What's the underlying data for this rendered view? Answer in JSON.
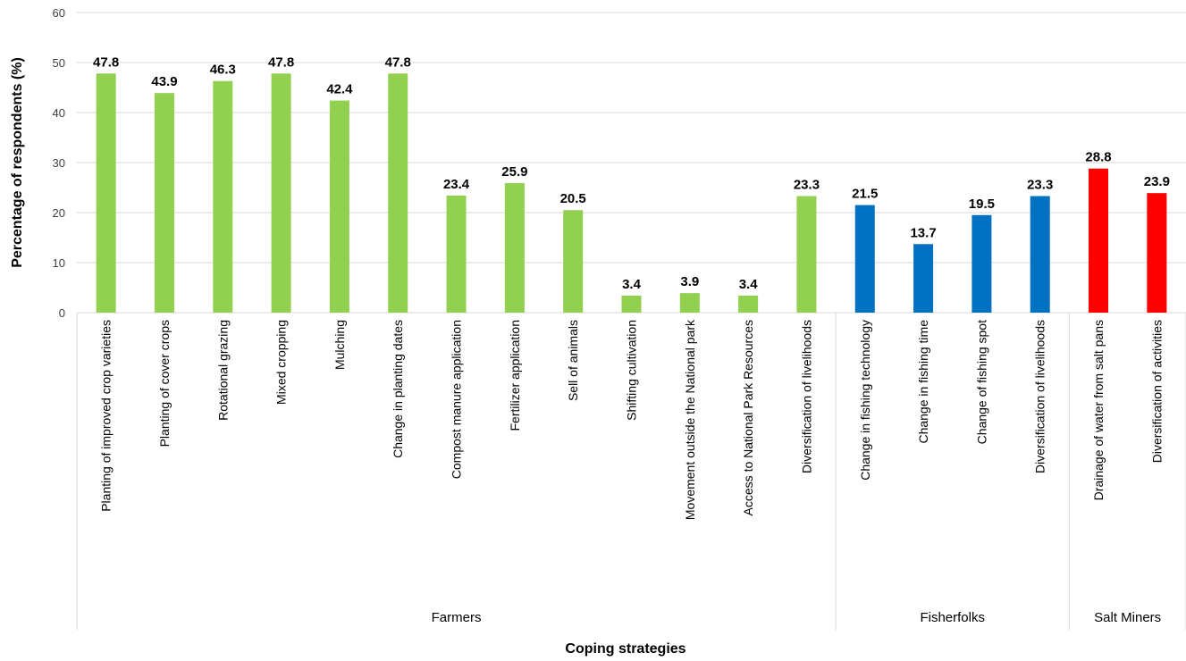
{
  "chart_data": {
    "type": "bar",
    "title": "",
    "xlabel": "Coping strategies",
    "ylabel": "Percentage of respondents (%)",
    "ylim": [
      0,
      60
    ],
    "yticks": [
      0,
      10,
      20,
      30,
      40,
      50,
      60
    ],
    "grid": true,
    "groups": [
      {
        "name": "Farmers",
        "color": "#92D050",
        "categories": [
          "Planting of improved crop varieties",
          "Planting of cover crops",
          "Rotational grazing",
          "Mixed cropping",
          "Mulching",
          "Change in planting dates",
          "Compost manure application",
          "Fertilizer application",
          "Sell of animals",
          "Shifting cultivation",
          "Movement outside the National park",
          "Access to National Park Resources",
          "Diversification of livelihoods"
        ],
        "values": [
          47.8,
          43.9,
          46.3,
          47.8,
          42.4,
          47.8,
          23.4,
          25.9,
          20.5,
          3.4,
          3.9,
          3.4,
          23.3
        ]
      },
      {
        "name": "Fisherfolks",
        "color": "#0070C0",
        "categories": [
          "Change in fishing technology",
          "Change in fishing time",
          "Change of fishing spot",
          "Diversification of livelihoods"
        ],
        "values": [
          21.5,
          13.7,
          19.5,
          23.3
        ]
      },
      {
        "name": "Salt Miners",
        "color": "#FF0000",
        "categories": [
          "Drainage of water from salt pans",
          "Diversification of activities"
        ],
        "values": [
          28.8,
          23.9
        ]
      }
    ]
  }
}
